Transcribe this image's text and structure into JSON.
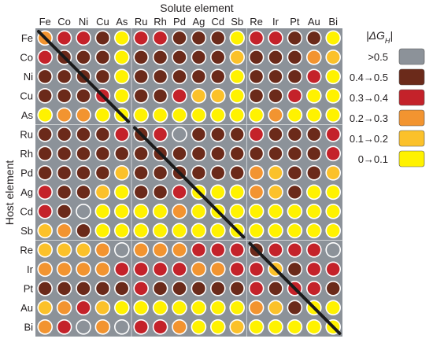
{
  "chart_data": {
    "type": "heatmap",
    "title": "",
    "xlabel": "Solute element",
    "ylabel": "Host element",
    "columns": [
      "Fe",
      "Co",
      "Ni",
      "Cu",
      "As",
      "Ru",
      "Rh",
      "Pd",
      "Ag",
      "Cd",
      "Sb",
      "Re",
      "Ir",
      "Pt",
      "Au",
      "Bi"
    ],
    "rows": [
      "Fe",
      "Co",
      "Ni",
      "Cu",
      "As",
      "Ru",
      "Rh",
      "Pd",
      "Ag",
      "Cd",
      "Sb",
      "Re",
      "Ir",
      "Pt",
      "Au",
      "Bi"
    ],
    "groups_cols": [
      [
        0,
        4
      ],
      [
        5,
        10
      ],
      [
        11,
        15
      ]
    ],
    "groups_rows": [
      [
        0,
        4
      ],
      [
        5,
        10
      ],
      [
        11,
        15
      ]
    ],
    "matrix": [
      [
        3,
        2,
        2,
        1,
        5,
        2,
        2,
        1,
        1,
        1,
        5,
        2,
        2,
        1,
        1,
        5
      ],
      [
        2,
        1,
        1,
        1,
        5,
        1,
        1,
        1,
        1,
        1,
        4,
        1,
        1,
        1,
        3,
        4
      ],
      [
        1,
        1,
        1,
        1,
        5,
        1,
        1,
        1,
        1,
        1,
        5,
        1,
        1,
        1,
        2,
        5
      ],
      [
        1,
        1,
        1,
        2,
        5,
        1,
        1,
        2,
        4,
        4,
        5,
        1,
        1,
        2,
        5,
        5
      ],
      [
        5,
        3,
        3,
        5,
        5,
        5,
        5,
        5,
        5,
        5,
        5,
        5,
        3,
        5,
        5,
        5
      ],
      [
        1,
        1,
        1,
        1,
        2,
        1,
        2,
        0,
        1,
        1,
        1,
        2,
        1,
        1,
        1,
        2
      ],
      [
        1,
        1,
        1,
        1,
        1,
        1,
        1,
        1,
        1,
        1,
        1,
        1,
        1,
        1,
        1,
        2
      ],
      [
        1,
        1,
        1,
        1,
        4,
        1,
        1,
        1,
        1,
        1,
        1,
        3,
        4,
        1,
        1,
        4
      ],
      [
        2,
        1,
        1,
        4,
        5,
        1,
        1,
        2,
        5,
        5,
        5,
        3,
        4,
        1,
        5,
        5
      ],
      [
        2,
        1,
        0,
        5,
        5,
        5,
        5,
        3,
        5,
        5,
        5,
        5,
        5,
        5,
        5,
        5
      ],
      [
        4,
        3,
        1,
        5,
        5,
        5,
        5,
        5,
        5,
        5,
        5,
        5,
        5,
        5,
        5,
        5
      ],
      [
        4,
        4,
        4,
        3,
        0,
        3,
        3,
        3,
        2,
        2,
        2,
        1,
        2,
        2,
        2,
        0
      ],
      [
        3,
        3,
        3,
        3,
        2,
        2,
        2,
        2,
        3,
        3,
        2,
        2,
        4,
        1,
        2,
        2
      ],
      [
        1,
        1,
        1,
        1,
        1,
        2,
        1,
        1,
        1,
        1,
        1,
        2,
        1,
        2,
        2,
        1
      ],
      [
        4,
        3,
        2,
        4,
        5,
        5,
        5,
        5,
        5,
        5,
        5,
        3,
        4,
        1,
        5,
        5
      ],
      [
        3,
        2,
        0,
        3,
        0,
        2,
        2,
        3,
        5,
        5,
        4,
        5,
        5,
        5,
        5,
        5
      ]
    ],
    "legend_title": "|ΔG",
    "legend_title_sub": "H",
    "legend_title_end": "|",
    "legend": [
      {
        "label": ">0.5",
        "color": "#8c9299"
      },
      {
        "label": "0.4→0.5",
        "color": "#6b2a1a"
      },
      {
        "label": "0.3→0.4",
        "color": "#c4222a"
      },
      {
        "label": "0.2→0.3",
        "color": "#f29430"
      },
      {
        "label": "0.1→0.2",
        "color": "#fbc12a"
      },
      {
        "label": "0→0.1",
        "color": "#fff200"
      }
    ],
    "background_color": "#8c9299",
    "diagonal_line_color": "#1a1a1a"
  }
}
